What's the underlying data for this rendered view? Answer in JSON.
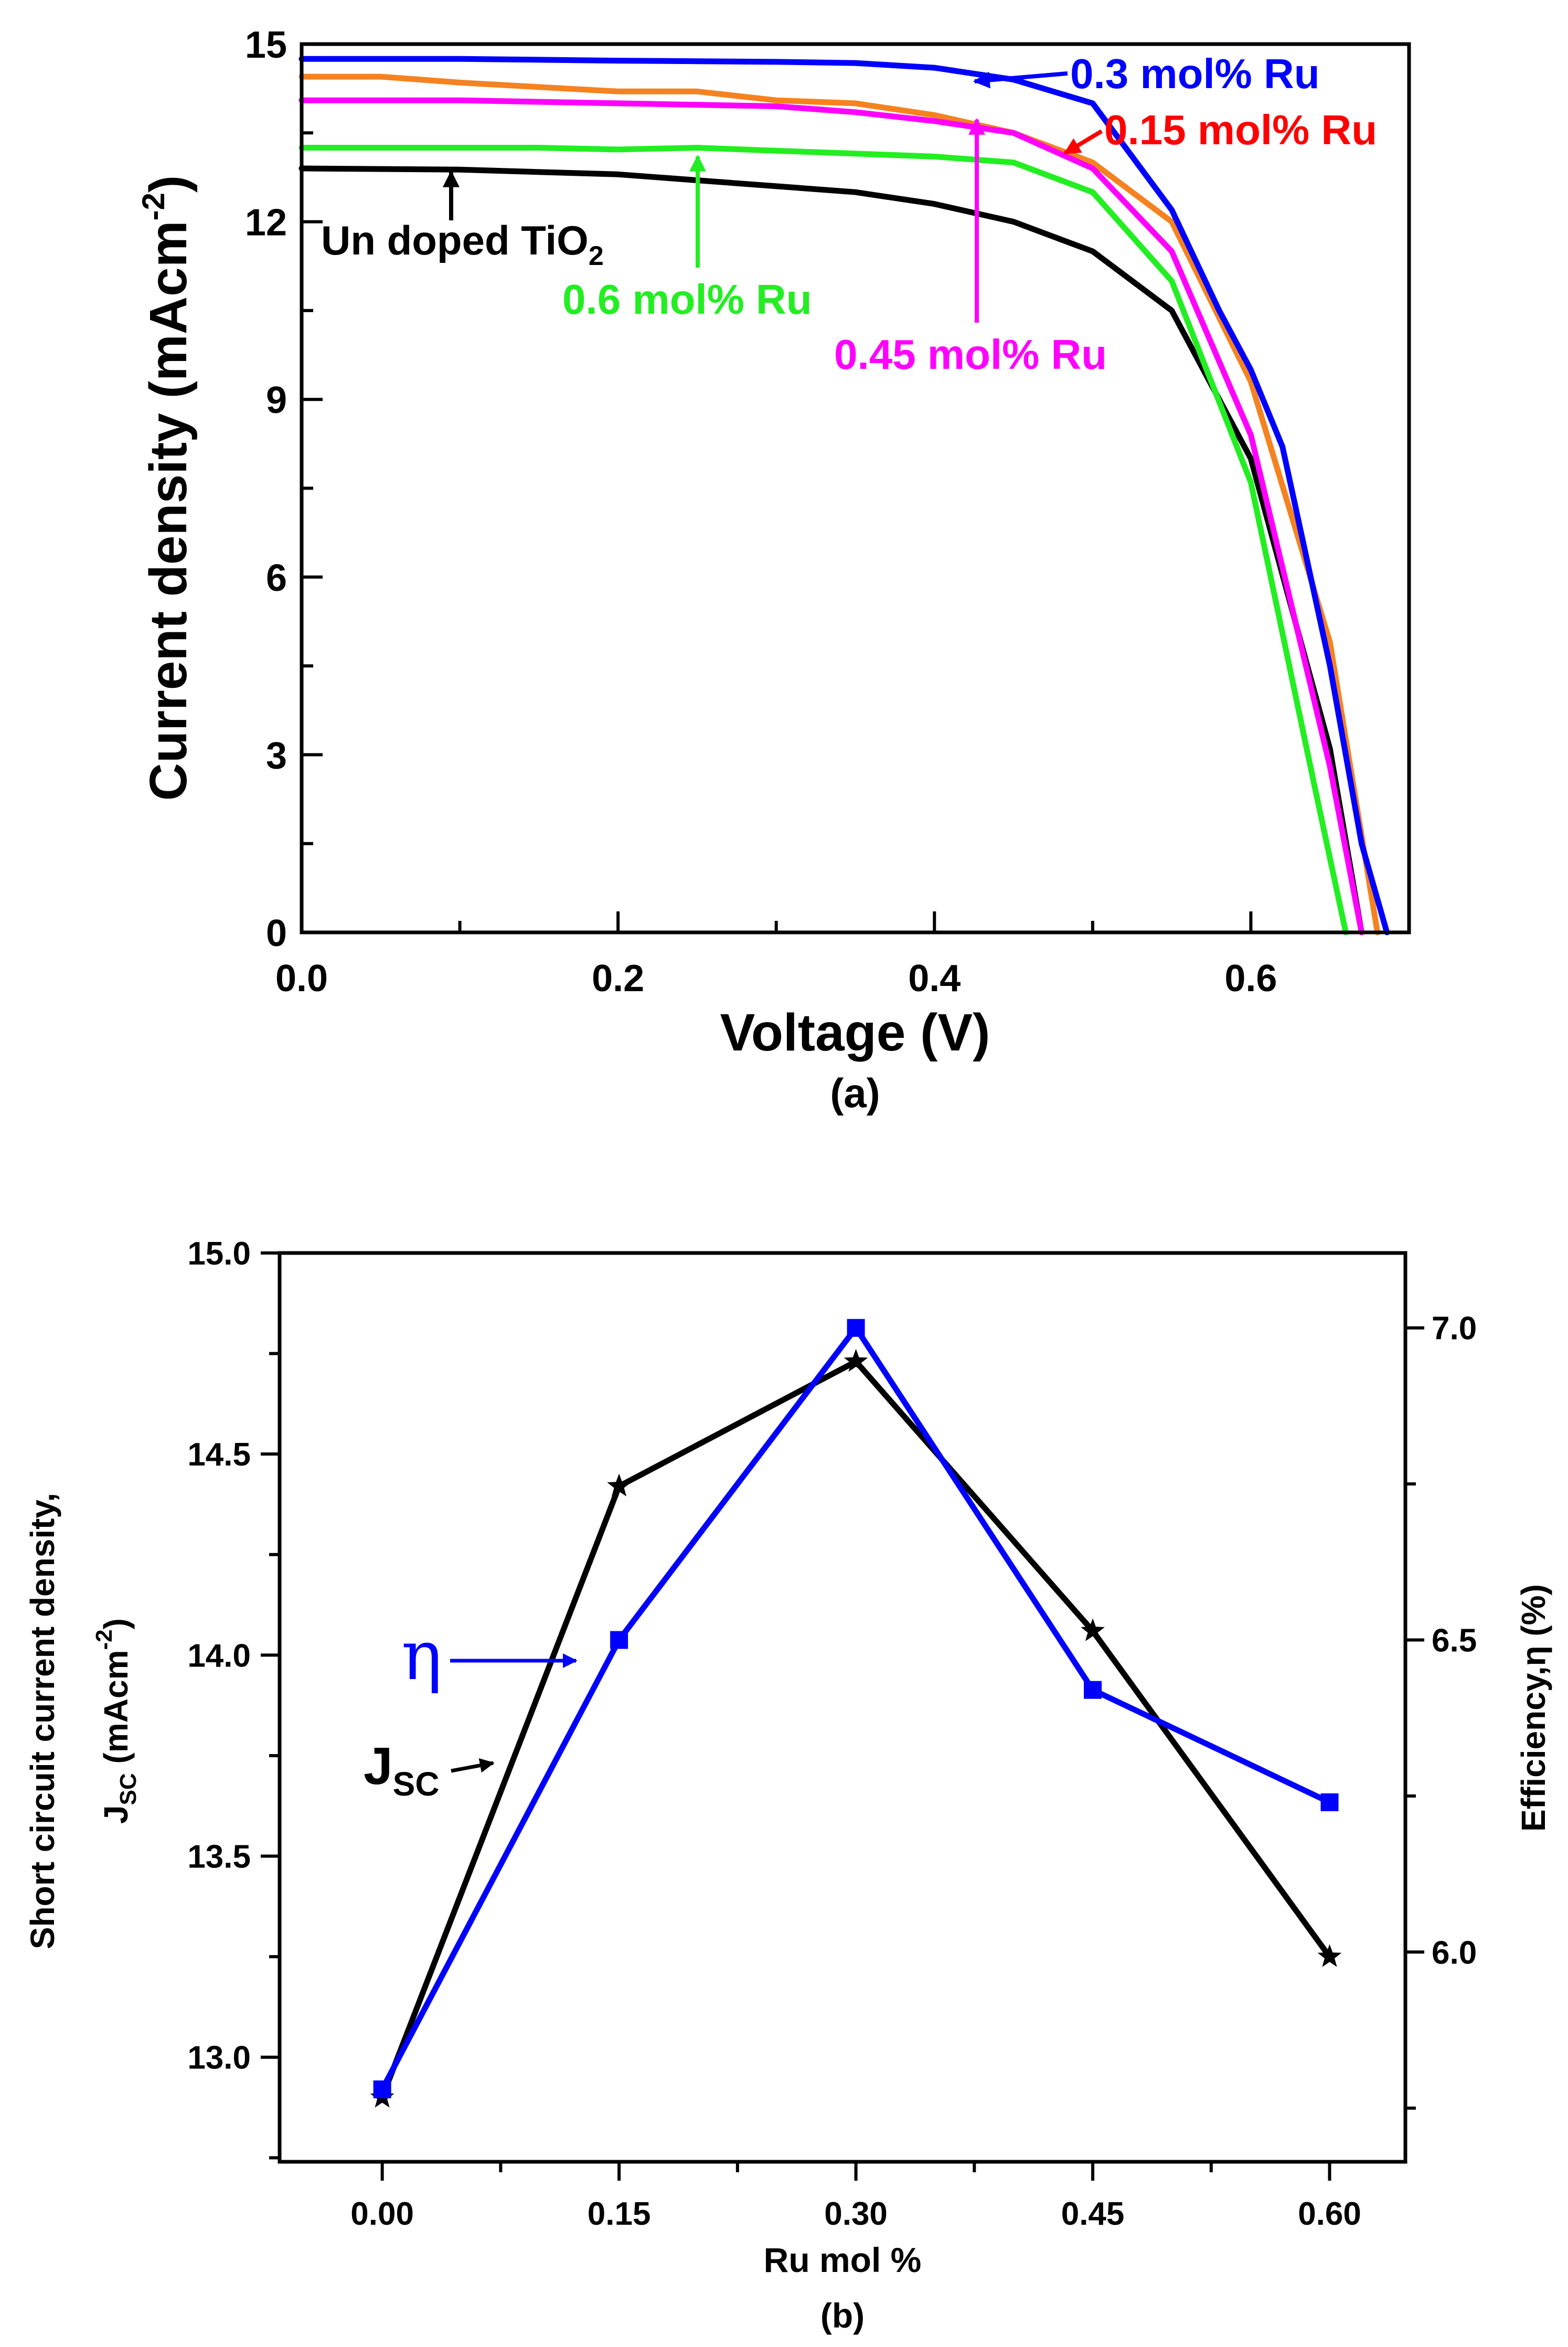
{
  "chart_data": [
    {
      "type": "line",
      "caption": "(a)",
      "xlabel": "Voltage (V)",
      "ylabel": "Current density (mAcm",
      "ylabel_sup": "-2",
      "ylabel_end": ")",
      "xlim": [
        0,
        0.7
      ],
      "ylim": [
        0,
        15
      ],
      "xticks": [
        "0.0",
        "0.2",
        "0.4",
        "0.6"
      ],
      "xtick_values": [
        0,
        0.2,
        0.4,
        0.6
      ],
      "yticks": [
        "0",
        "3",
        "6",
        "9",
        "12",
        "15"
      ],
      "ytick_values": [
        0,
        3,
        6,
        9,
        12,
        15
      ],
      "series": [
        {
          "name": "Un doped TiO2",
          "label": "Un doped TiO",
          "label_sub": "2",
          "color": "#000000",
          "x": [
            0,
            0.1,
            0.2,
            0.3,
            0.35,
            0.4,
            0.45,
            0.5,
            0.55,
            0.6,
            0.65,
            0.67
          ],
          "y": [
            12.9,
            12.88,
            12.8,
            12.6,
            12.5,
            12.3,
            12.0,
            11.5,
            10.5,
            8.0,
            3.1,
            0
          ]
        },
        {
          "name": "0.15 mol% Ru",
          "label": "0.15 mol% Ru",
          "color": "#f58220",
          "x": [
            0,
            0.05,
            0.1,
            0.2,
            0.25,
            0.3,
            0.35,
            0.4,
            0.45,
            0.5,
            0.55,
            0.6,
            0.65,
            0.68
          ],
          "y": [
            14.45,
            14.45,
            14.35,
            14.2,
            14.2,
            14.05,
            14.0,
            13.8,
            13.5,
            13.0,
            12.0,
            9.3,
            4.9,
            0
          ]
        },
        {
          "name": "0.3 mol% Ru",
          "label": "0.3 mol% Ru",
          "color": "#0000ff",
          "x": [
            0,
            0.1,
            0.2,
            0.3,
            0.35,
            0.4,
            0.45,
            0.5,
            0.55,
            0.58,
            0.6,
            0.62,
            0.65,
            0.67,
            0.686
          ],
          "y": [
            14.75,
            14.75,
            14.72,
            14.7,
            14.68,
            14.6,
            14.4,
            14.0,
            12.2,
            10.5,
            9.5,
            8.2,
            4.5,
            1.5,
            0
          ]
        },
        {
          "name": "0.45 mol% Ru",
          "label": "0.45 mol% Ru",
          "color": "#ff00ff",
          "x": [
            0,
            0.05,
            0.1,
            0.2,
            0.3,
            0.35,
            0.4,
            0.45,
            0.5,
            0.55,
            0.6,
            0.65,
            0.67
          ],
          "y": [
            14.05,
            14.05,
            14.05,
            14.0,
            13.95,
            13.85,
            13.7,
            13.5,
            12.9,
            11.5,
            8.4,
            2.8,
            0
          ]
        },
        {
          "name": "0.6 mol% Ru",
          "label": "0.6 mol% Ru",
          "color": "#22ee22",
          "x": [
            0,
            0.05,
            0.15,
            0.2,
            0.25,
            0.3,
            0.35,
            0.4,
            0.45,
            0.5,
            0.55,
            0.6,
            0.64,
            0.66
          ],
          "y": [
            13.25,
            13.25,
            13.25,
            13.22,
            13.25,
            13.2,
            13.15,
            13.1,
            13.0,
            12.5,
            11.0,
            7.6,
            2.5,
            0
          ]
        }
      ]
    },
    {
      "type": "line",
      "caption": "(b)",
      "xlabel": "Ru mol %",
      "ylabel_line1": "Short circuit current density,",
      "ylabel_line2_a": "J",
      "ylabel_line2_sub": "SC",
      "ylabel_line2_b": " (mAcm",
      "ylabel_line2_sup": "-2",
      "ylabel_line2_c": ")",
      "y2label": "Efficiency,η (%)",
      "categories": [
        "0.00",
        "0.15",
        "0.30",
        "0.45",
        "0.60"
      ],
      "x": [
        0,
        0.15,
        0.3,
        0.45,
        0.6
      ],
      "xlim": [
        -0.065,
        0.648
      ],
      "ylim": [
        12.74,
        15.0
      ],
      "y2lim": [
        5.664,
        7.12
      ],
      "yticks": [
        "13.0",
        "13.5",
        "14.0",
        "14.5",
        "15.0"
      ],
      "ytick_values": [
        13.0,
        13.5,
        14.0,
        14.5,
        15.0
      ],
      "y2ticks": [
        "6.0",
        "6.5",
        "7.0"
      ],
      "y2tick_values": [
        6.0,
        6.5,
        7.0
      ],
      "series": [
        {
          "name": "Jsc",
          "label": "J",
          "label_sub": "SC",
          "axis": "left",
          "marker": "star",
          "color": "#000000",
          "values": [
            12.9,
            14.42,
            14.73,
            14.06,
            13.25
          ]
        },
        {
          "name": "Efficiency",
          "label": "η",
          "axis": "right",
          "marker": "square",
          "color": "#0000ff",
          "values": [
            5.78,
            6.5,
            7.0,
            6.42,
            6.24
          ]
        }
      ]
    }
  ]
}
